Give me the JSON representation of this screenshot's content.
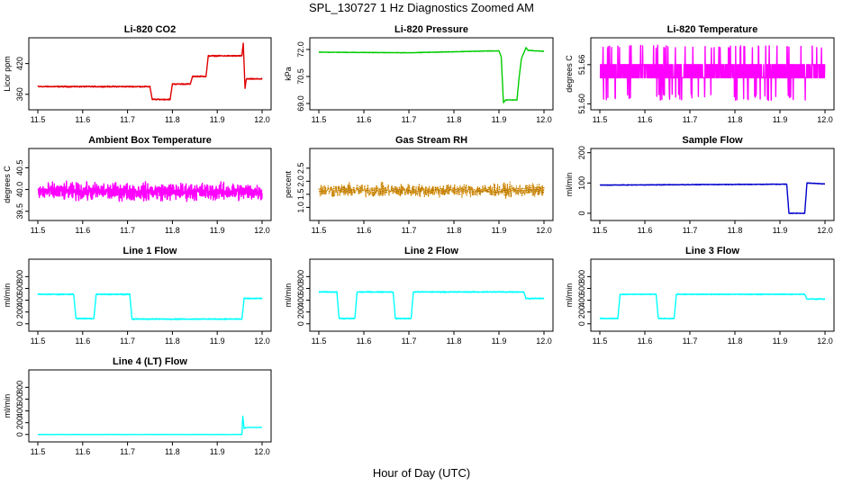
{
  "title": "SPL_130727  1 Hz Diagnostics Zoomed AM",
  "xlabel": "Hour of Day (UTC)",
  "chart_data": [
    {
      "type": "line",
      "title": "Li-820 CO2",
      "ylabel": "Licor ppm",
      "color": "#e00000",
      "xlim": [
        11.5,
        12.0
      ],
      "xticks": [
        11.5,
        11.6,
        11.7,
        11.8,
        11.9,
        12.0
      ],
      "ylim": [
        335,
        465
      ],
      "yticks": [
        360,
        420
      ],
      "noise": 1.5,
      "series": [
        {
          "x": [
            11.5,
            11.75,
            11.755,
            11.795,
            11.8,
            11.84,
            11.845,
            11.875,
            11.88,
            11.955,
            11.958,
            11.962,
            11.965,
            12.0
          ],
          "y": [
            375,
            375,
            350,
            350,
            380,
            380,
            395,
            395,
            435,
            435,
            460,
            372,
            390,
            390
          ]
        }
      ]
    },
    {
      "type": "line",
      "title": "Li-820 Pressure",
      "ylabel": "kPa",
      "color": "#00cc00",
      "xlim": [
        11.5,
        12.0
      ],
      "xticks": [
        11.5,
        11.6,
        11.7,
        11.8,
        11.9,
        12.0
      ],
      "ylim": [
        68.8,
        72.5
      ],
      "yticks": [
        69.0,
        70.5,
        72.0
      ],
      "noise": 0.02,
      "series": [
        {
          "x": [
            11.5,
            11.7,
            11.88,
            11.9,
            11.905,
            11.91,
            11.915,
            11.94,
            11.945,
            11.95,
            11.96,
            11.965,
            12.0
          ],
          "y": [
            71.85,
            71.82,
            71.92,
            71.92,
            71.6,
            69.05,
            69.2,
            69.2,
            70.5,
            71.5,
            72.1,
            71.95,
            71.9
          ]
        }
      ]
    },
    {
      "type": "line",
      "title": "Li-820 Temperature",
      "ylabel": "degrees C",
      "color": "#ff00ff",
      "xlim": [
        11.5,
        12.0
      ],
      "xticks": [
        11.5,
        11.6,
        11.7,
        11.8,
        11.9,
        12.0
      ],
      "ylim": [
        51.595,
        51.697
      ],
      "yticks": [
        51.6,
        51.66
      ],
      "pattern": "switch",
      "levels": [
        51.64,
        51.66
      ],
      "spikes_low": 51.605,
      "spikes_high": 51.69,
      "series": [
        {
          "x": [
            11.5,
            12.0
          ],
          "y": [
            51.65,
            51.65
          ]
        }
      ]
    },
    {
      "type": "line",
      "title": "Ambient Box Temperature",
      "ylabel": "degrees C",
      "color": "#ff00ff",
      "xlim": [
        11.5,
        12.0
      ],
      "xticks": [
        11.5,
        11.6,
        11.7,
        11.8,
        11.9,
        12.0
      ],
      "ylim": [
        39.35,
        40.88
      ],
      "yticks": [
        39.5,
        40.0,
        40.5
      ],
      "noise": 0.28,
      "series": [
        {
          "x": [
            11.5,
            12.0
          ],
          "y": [
            39.95,
            39.95
          ]
        }
      ]
    },
    {
      "type": "line",
      "title": "Gas Stream RH",
      "ylabel": "percent",
      "color": "#ff9900",
      "xlim": [
        11.5,
        12.0
      ],
      "xticks": [
        11.5,
        11.6,
        11.7,
        11.8,
        11.9,
        12.0
      ],
      "ylim": [
        0.6,
        3.15
      ],
      "yticks": [
        1.0,
        1.5,
        2.0,
        2.5
      ],
      "noise": 0.35,
      "dotted": true,
      "series": [
        {
          "x": [
            11.5,
            12.0
          ],
          "y": [
            1.65,
            1.65
          ]
        }
      ]
    },
    {
      "type": "line",
      "title": "Sample Flow",
      "ylabel": "ml/min",
      "color": "#0000cc",
      "xlim": [
        11.5,
        12.0
      ],
      "xticks": [
        11.5,
        11.6,
        11.7,
        11.8,
        11.9,
        12.0
      ],
      "ylim": [
        -15,
        205
      ],
      "yticks": [
        0,
        100,
        200
      ],
      "noise": 1.5,
      "series": [
        {
          "x": [
            11.5,
            11.915,
            11.92,
            11.955,
            11.96,
            12.0
          ],
          "y": [
            93,
            96,
            0,
            0,
            100,
            97
          ]
        }
      ]
    },
    {
      "type": "line",
      "title": "Line 1 Flow",
      "ylabel": "ml/min",
      "color": "#00ffff",
      "xlim": [
        11.5,
        12.0
      ],
      "xticks": [
        11.5,
        11.6,
        11.7,
        11.8,
        11.9,
        12.0
      ],
      "ylim": [
        -80,
        1050
      ],
      "yticks": [
        0,
        200,
        400,
        600,
        800
      ],
      "noise": 12,
      "series": [
        {
          "x": [
            11.5,
            11.58,
            11.585,
            11.625,
            11.63,
            11.705,
            11.71,
            11.955,
            11.96,
            12.0
          ],
          "y": [
            500,
            500,
            90,
            90,
            500,
            500,
            80,
            80,
            430,
            430
          ]
        }
      ]
    },
    {
      "type": "line",
      "title": "Line 2 Flow",
      "ylabel": "ml/min",
      "color": "#00ffff",
      "xlim": [
        11.5,
        12.0
      ],
      "xticks": [
        11.5,
        11.6,
        11.7,
        11.8,
        11.9,
        12.0
      ],
      "ylim": [
        -80,
        1050
      ],
      "yticks": [
        0,
        200,
        400,
        600,
        800
      ],
      "noise": 12,
      "series": [
        {
          "x": [
            11.5,
            11.54,
            11.545,
            11.58,
            11.585,
            11.665,
            11.67,
            11.705,
            11.71,
            11.955,
            11.96,
            12.0
          ],
          "y": [
            540,
            540,
            90,
            90,
            540,
            540,
            90,
            90,
            540,
            540,
            430,
            430
          ]
        }
      ]
    },
    {
      "type": "line",
      "title": "Line 3 Flow",
      "ylabel": "ml/min",
      "color": "#00ffff",
      "xlim": [
        11.5,
        12.0
      ],
      "xticks": [
        11.5,
        11.6,
        11.7,
        11.8,
        11.9,
        12.0
      ],
      "ylim": [
        -80,
        1050
      ],
      "yticks": [
        0,
        200,
        400,
        600,
        800
      ],
      "noise": 10,
      "series": [
        {
          "x": [
            11.5,
            11.54,
            11.545,
            11.625,
            11.63,
            11.665,
            11.67,
            11.955,
            11.96,
            12.0
          ],
          "y": [
            90,
            90,
            500,
            500,
            90,
            90,
            500,
            500,
            420,
            420
          ]
        }
      ]
    },
    {
      "type": "line",
      "title": "Line 4 (LT) Flow",
      "ylabel": "ml/min",
      "color": "#00ffff",
      "xlim": [
        11.5,
        12.0
      ],
      "xticks": [
        11.5,
        11.6,
        11.7,
        11.8,
        11.9,
        12.0
      ],
      "ylim": [
        -80,
        1050
      ],
      "yticks": [
        0,
        200,
        400,
        600,
        800
      ],
      "noise": 2,
      "series": [
        {
          "x": [
            11.5,
            11.955,
            11.957,
            11.96,
            11.965,
            12.0
          ],
          "y": [
            0,
            0,
            310,
            100,
            120,
            120
          ]
        }
      ]
    }
  ]
}
